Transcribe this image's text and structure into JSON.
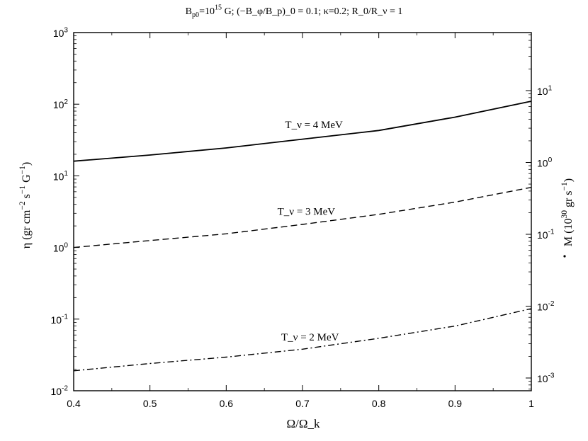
{
  "chart_data": {
    "type": "line",
    "title": "B_{p0}=10^{15} G;  (−B_φ/B_p)_0 = 0.1;  κ=0.2;  R_0/R_ν = 1",
    "xlabel": "Ω/Ω_k",
    "ylabel": "η (gr cm^{−2} s^{−1} G^{−1})",
    "ylabel_right": "M (10^{30} gr s^{−1})",
    "xlim": [
      0.4,
      1.0
    ],
    "ylim": [
      0.01,
      1000
    ],
    "y_scale": "log",
    "grid": false,
    "xticks": [
      "0.4",
      "0.5",
      "0.6",
      "0.7",
      "0.8",
      "0.9",
      "1"
    ],
    "yticks": [
      "10^{-2}",
      "10^{-1}",
      "10^{0}",
      "10^{1}",
      "10^{2}",
      "10^{3}"
    ],
    "yticks_right": [
      "10^{-3}",
      "10^{-2}",
      "10^{-1}",
      "10^{0}",
      "10^{1}"
    ],
    "x": [
      0.4,
      0.5,
      0.6,
      0.7,
      0.8,
      0.9,
      1.0
    ],
    "series": [
      {
        "name": "T_ν = 4 MeV",
        "style": "solid",
        "values": [
          16,
          19.5,
          24.5,
          32.5,
          43,
          66,
          110
        ]
      },
      {
        "name": "T_ν = 3 MeV",
        "style": "dashed",
        "values": [
          1.0,
          1.25,
          1.55,
          2.1,
          2.9,
          4.3,
          6.9
        ]
      },
      {
        "name": "T_ν = 2 MeV",
        "style": "dashdot",
        "values": [
          0.019,
          0.024,
          0.0295,
          0.038,
          0.054,
          0.08,
          0.14
        ]
      }
    ]
  }
}
